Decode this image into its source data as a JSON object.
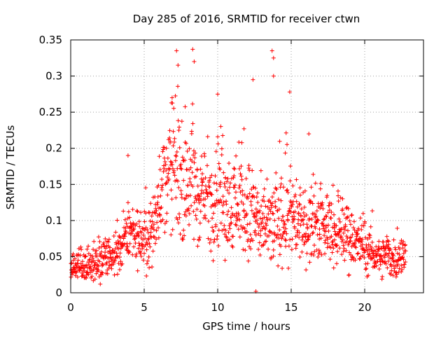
{
  "chart_data": {
    "type": "scatter",
    "title": "Day 285 of 2016, SRMTID for receiver ctwn",
    "xlabel": "GPS time / hours",
    "ylabel": "SRMTID / TECUs",
    "xlim": [
      0,
      24
    ],
    "ylim": [
      0,
      0.35
    ],
    "xticks": [
      0,
      5,
      10,
      15,
      20
    ],
    "xtick_labels": [
      "0",
      "5",
      "10",
      "15",
      "20"
    ],
    "yticks": [
      0,
      0.05,
      0.1,
      0.15,
      0.2,
      0.25,
      0.3,
      0.35
    ],
    "ytick_labels": [
      "0",
      "0.05",
      "0.1",
      "0.15",
      "0.2",
      "0.25",
      "0.3",
      "0.35"
    ],
    "grid": true,
    "marker": "+",
    "color": "#ff0000",
    "envelope": {
      "x": [
        0,
        1,
        2,
        3,
        3.5,
        4,
        4.5,
        5,
        5.5,
        6,
        6.5,
        7,
        7.5,
        8,
        8.5,
        9,
        9.5,
        10,
        10.5,
        11,
        11.5,
        12,
        12.5,
        13,
        13.5,
        14,
        14.5,
        15,
        15.5,
        16,
        16.5,
        17,
        17.5,
        18,
        18.5,
        19,
        19.5,
        20,
        20.5,
        21,
        21.5,
        22,
        22.8
      ],
      "center": [
        0.037,
        0.035,
        0.045,
        0.05,
        0.065,
        0.085,
        0.075,
        0.07,
        0.08,
        0.13,
        0.16,
        0.17,
        0.17,
        0.15,
        0.14,
        0.14,
        0.13,
        0.14,
        0.13,
        0.12,
        0.13,
        0.12,
        0.11,
        0.09,
        0.09,
        0.1,
        0.11,
        0.11,
        0.1,
        0.09,
        0.1,
        0.09,
        0.09,
        0.08,
        0.08,
        0.075,
        0.07,
        0.06,
        0.055,
        0.05,
        0.05,
        0.05,
        0.05
      ],
      "spread": [
        0.015,
        0.015,
        0.02,
        0.02,
        0.025,
        0.03,
        0.025,
        0.025,
        0.03,
        0.04,
        0.05,
        0.06,
        0.06,
        0.06,
        0.05,
        0.05,
        0.05,
        0.05,
        0.05,
        0.05,
        0.05,
        0.05,
        0.05,
        0.04,
        0.04,
        0.04,
        0.05,
        0.04,
        0.04,
        0.035,
        0.035,
        0.035,
        0.035,
        0.03,
        0.03,
        0.03,
        0.025,
        0.025,
        0.02,
        0.02,
        0.02,
        0.02,
        0.02
      ]
    },
    "outliers": [
      {
        "x": 7.2,
        "y": 0.335
      },
      {
        "x": 7.3,
        "y": 0.315
      },
      {
        "x": 8.3,
        "y": 0.337
      },
      {
        "x": 8.4,
        "y": 0.32
      },
      {
        "x": 13.7,
        "y": 0.335
      },
      {
        "x": 13.8,
        "y": 0.325
      },
      {
        "x": 13.8,
        "y": 0.3
      },
      {
        "x": 14.9,
        "y": 0.278
      },
      {
        "x": 12.4,
        "y": 0.295
      },
      {
        "x": 10.0,
        "y": 0.275
      },
      {
        "x": 6.9,
        "y": 0.27
      },
      {
        "x": 3.9,
        "y": 0.19
      },
      {
        "x": 16.2,
        "y": 0.22
      },
      {
        "x": 12.6,
        "y": 0.002
      },
      {
        "x": 10.5,
        "y": 0.045
      }
    ]
  }
}
